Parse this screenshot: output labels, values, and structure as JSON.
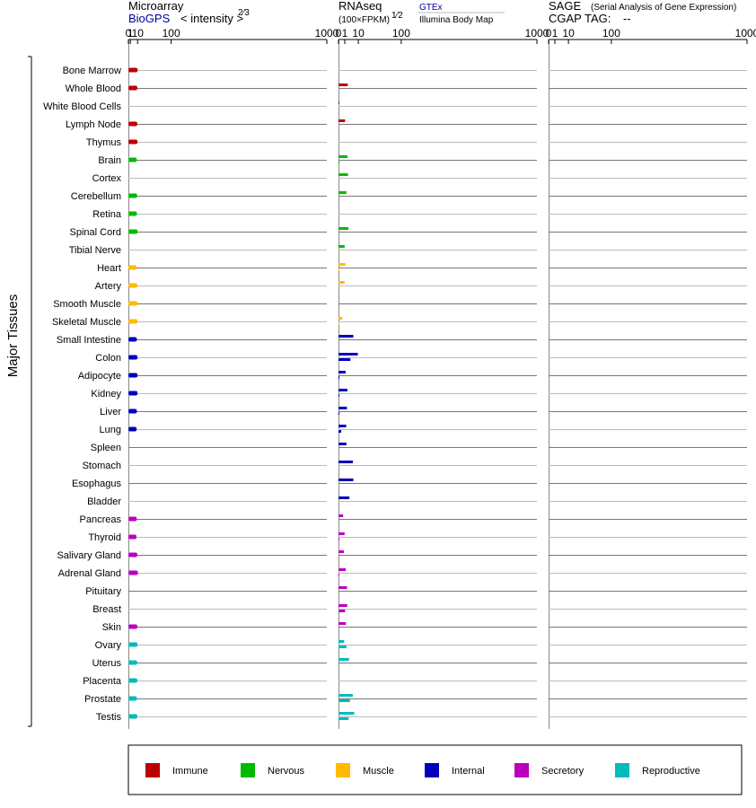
{
  "chart_data": {
    "type": "bar",
    "y_group_label": "Major Tissues",
    "tissues": [
      "Bone Marrow",
      "Whole Blood",
      "White Blood Cells",
      "Lymph Node",
      "Thymus",
      "Brain",
      "Cortex",
      "Cerebellum",
      "Retina",
      "Spinal Cord",
      "Tibial Nerve",
      "Heart",
      "Artery",
      "Smooth Muscle",
      "Skeletal Muscle",
      "Small Intestine",
      "Colon",
      "Adipocyte",
      "Kidney",
      "Liver",
      "Lung",
      "Spleen",
      "Stomach",
      "Esophagus",
      "Bladder",
      "Pancreas",
      "Thyroid",
      "Salivary Gland",
      "Adrenal Gland",
      "Pituitary",
      "Breast",
      "Skin",
      "Ovary",
      "Uterus",
      "Placenta",
      "Prostate",
      "Testis"
    ],
    "categories": [
      "Immune",
      "Immune",
      "Immune",
      "Immune",
      "Immune",
      "Nervous",
      "Nervous",
      "Nervous",
      "Nervous",
      "Nervous",
      "Nervous",
      "Muscle",
      "Muscle",
      "Muscle",
      "Muscle",
      "Internal",
      "Internal",
      "Internal",
      "Internal",
      "Internal",
      "Internal",
      "Internal",
      "Internal",
      "Internal",
      "Internal",
      "Secretory",
      "Secretory",
      "Secretory",
      "Secretory",
      "Secretory",
      "Secretory",
      "Secretory",
      "Reproductive",
      "Reproductive",
      "Reproductive",
      "Reproductive",
      "Reproductive"
    ],
    "category_colors": {
      "Immune": "#bb0000",
      "Nervous": "#00bb00",
      "Muscle": "#ffbb00",
      "Internal": "#0000bb",
      "Secretory": "#bb00bb",
      "Reproductive": "#00bbbb"
    },
    "legend": [
      "Immune",
      "Nervous",
      "Muscle",
      "Internal",
      "Secretory",
      "Reproductive"
    ],
    "panels": [
      {
        "title": "Microarray",
        "subtitle": "BioGPS",
        "unit_label": "< intensity >",
        "unit_exp": "2⁄3",
        "xticks": [
          0,
          1,
          10,
          100,
          1000
        ],
        "xtick_labels": [
          "0",
          "1",
          "10",
          "100",
          "1000"
        ],
        "values": [
          10,
          9.5,
          null,
          9.5,
          9.8,
          8.6,
          null,
          9.2,
          8.8,
          10,
          null,
          8.2,
          9.5,
          9.8,
          9.8,
          8.8,
          9.8,
          9.8,
          9.8,
          8.8,
          8.4,
          null,
          null,
          null,
          null,
          8.6,
          8.2,
          9.5,
          10.5,
          null,
          null,
          9.5,
          9.8,
          9.2,
          9.5,
          8.8,
          9.5
        ],
        "values2": []
      },
      {
        "title": "RNAseq",
        "unit_label": "(100×FPKM)",
        "unit_exp": "1⁄2",
        "source1": "GTEx",
        "source2": "Illumina Body Map",
        "xticks": [
          0,
          1,
          10,
          100,
          1000
        ],
        "xtick_labels": [
          "0",
          "1",
          "10",
          "100",
          "1000"
        ],
        "values": [
          null,
          2.2,
          0.01,
          1.1,
          null,
          2.1,
          2.3,
          1.6,
          null,
          2.5,
          0.95,
          1.2,
          0.95,
          null,
          0.35,
          5.6,
          9.5,
          1.3,
          2,
          1.8,
          1.5,
          1.6,
          5.3,
          5.6,
          3,
          0.55,
          0.95,
          0.75,
          1.35,
          1.85,
          1.95,
          1.4,
          0.8,
          2.8,
          null,
          5.2,
          6.3
        ],
        "values2": [
          null,
          null,
          null,
          null,
          null,
          0.01,
          null,
          null,
          null,
          null,
          null,
          0.01,
          null,
          null,
          0.01,
          null,
          3.6,
          0.01,
          0.01,
          0.01,
          0.2,
          null,
          null,
          null,
          null,
          null,
          0.01,
          null,
          0.01,
          null,
          1.1,
          null,
          1.6,
          null,
          null,
          3.3,
          2.6
        ]
      },
      {
        "title": "SAGE",
        "title_note": "(Serial Analysis of Gene Expression)",
        "tag_label": "CGAP TAG:",
        "tag_value": "--",
        "xticks": [
          0,
          1,
          10,
          100,
          1000
        ],
        "xtick_labels": [
          "0",
          "1",
          "10",
          "100",
          "1000"
        ],
        "values": [],
        "values2": []
      }
    ]
  }
}
